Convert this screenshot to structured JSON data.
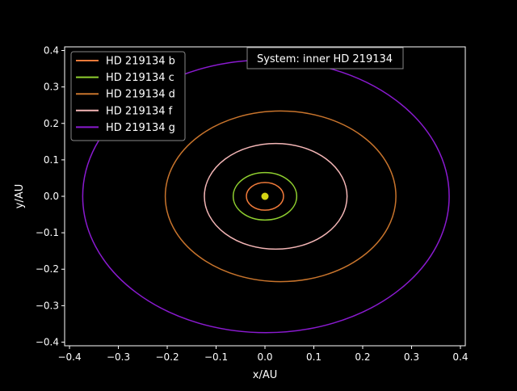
{
  "chart_data": {
    "type": "line",
    "title": "",
    "annotation": "System: inner HD 219134",
    "xlabel": "x/AU",
    "ylabel": "y/AU",
    "xlim": [
      -0.41,
      0.41
    ],
    "ylim": [
      -0.41,
      0.41
    ],
    "xticks": [
      -0.4,
      -0.3,
      -0.2,
      -0.1,
      0.0,
      0.1,
      0.2,
      0.3,
      0.4
    ],
    "yticks": [
      -0.4,
      -0.3,
      -0.2,
      -0.1,
      0.0,
      0.1,
      0.2,
      0.3,
      0.4
    ],
    "xtick_labels": [
      "−0.4",
      "−0.3",
      "−0.2",
      "−0.1",
      "0.0",
      "0.1",
      "0.2",
      "0.3",
      "0.4"
    ],
    "ytick_labels": [
      "−0.4",
      "−0.3",
      "−0.2",
      "−0.1",
      "0.0",
      "0.1",
      "0.2",
      "0.3",
      "0.4"
    ],
    "grid": false,
    "legend_position": "top-left",
    "background": "#000000",
    "foreground": "#ffffff",
    "star": {
      "x": 0.0,
      "y": 0.0,
      "color": "#d4d414"
    },
    "series": [
      {
        "name": "HD 219134 b",
        "color": "#f07a3a",
        "cx": 0.0,
        "cy": 0.0,
        "a": 0.038,
        "b": 0.038
      },
      {
        "name": "HD 219134 c",
        "color": "#8fcf2f",
        "cx": 0.0,
        "cy": 0.0,
        "a": 0.065,
        "b": 0.065
      },
      {
        "name": "HD 219134 d",
        "color": "#c8742c",
        "cx": 0.032,
        "cy": 0.0,
        "a": 0.236,
        "b": 0.234
      },
      {
        "name": "HD 219134 f",
        "color": "#f4b6b6",
        "cx": 0.022,
        "cy": 0.0,
        "a": 0.146,
        "b": 0.145
      },
      {
        "name": "HD 219134 g",
        "color": "#8a1ad0",
        "cx": 0.002,
        "cy": 0.0,
        "a": 0.375,
        "b": 0.374
      }
    ]
  }
}
